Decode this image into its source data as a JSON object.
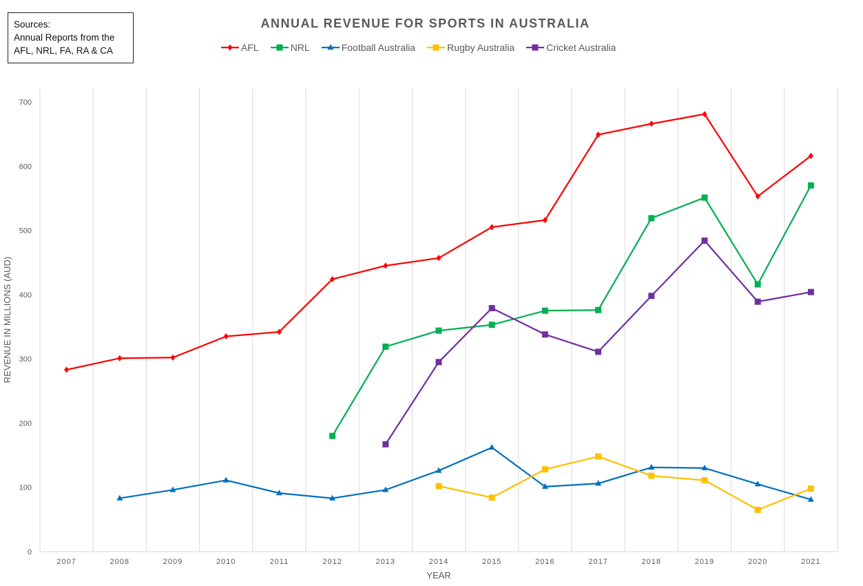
{
  "sources": {
    "lines": [
      "Sources:",
      "Annual Reports from the",
      "AFL, NRL, FA, RA & CA"
    ]
  },
  "chart_data": {
    "type": "line",
    "title": "ANNUAL REVENUE FOR SPORTS IN AUSTRALIA",
    "xlabel": "YEAR",
    "ylabel": "REVENUE IN MILLIONS (AUD)",
    "ylim": [
      0,
      700
    ],
    "yticks": [
      0,
      100,
      200,
      300,
      400,
      500,
      600,
      700
    ],
    "categories": [
      "2007",
      "2008",
      "2009",
      "2010",
      "2011",
      "2012",
      "2013",
      "2014",
      "2015",
      "2016",
      "2017",
      "2018",
      "2019",
      "2020",
      "2021"
    ],
    "grid": "vertical",
    "legend_position": "top",
    "series": [
      {
        "name": "AFL",
        "color": "#ff0000",
        "marker": "diamond",
        "values": [
          283,
          301,
          302,
          335,
          342,
          424,
          445,
          457,
          505,
          516,
          649,
          666,
          681,
          553,
          616
        ]
      },
      {
        "name": "NRL",
        "color": "#00b050",
        "marker": "square",
        "values": [
          null,
          null,
          null,
          null,
          null,
          180,
          319,
          344,
          353,
          375,
          376,
          519,
          551,
          416,
          570
        ]
      },
      {
        "name": "Football Australia",
        "color": "#0070c0",
        "marker": "triangle",
        "values": [
          null,
          83,
          96,
          111,
          91,
          83,
          96,
          126,
          162,
          101,
          106,
          131,
          130,
          105,
          81
        ]
      },
      {
        "name": "Rugby Australia",
        "color": "#ffc000",
        "marker": "square",
        "values": [
          null,
          null,
          null,
          null,
          null,
          null,
          null,
          102,
          84,
          128,
          148,
          118,
          111,
          65,
          98
        ]
      },
      {
        "name": "Cricket Australia",
        "color": "#7030a0",
        "marker": "square",
        "values": [
          null,
          null,
          null,
          null,
          null,
          null,
          167,
          295,
          379,
          338,
          311,
          398,
          484,
          389,
          404
        ]
      }
    ]
  }
}
